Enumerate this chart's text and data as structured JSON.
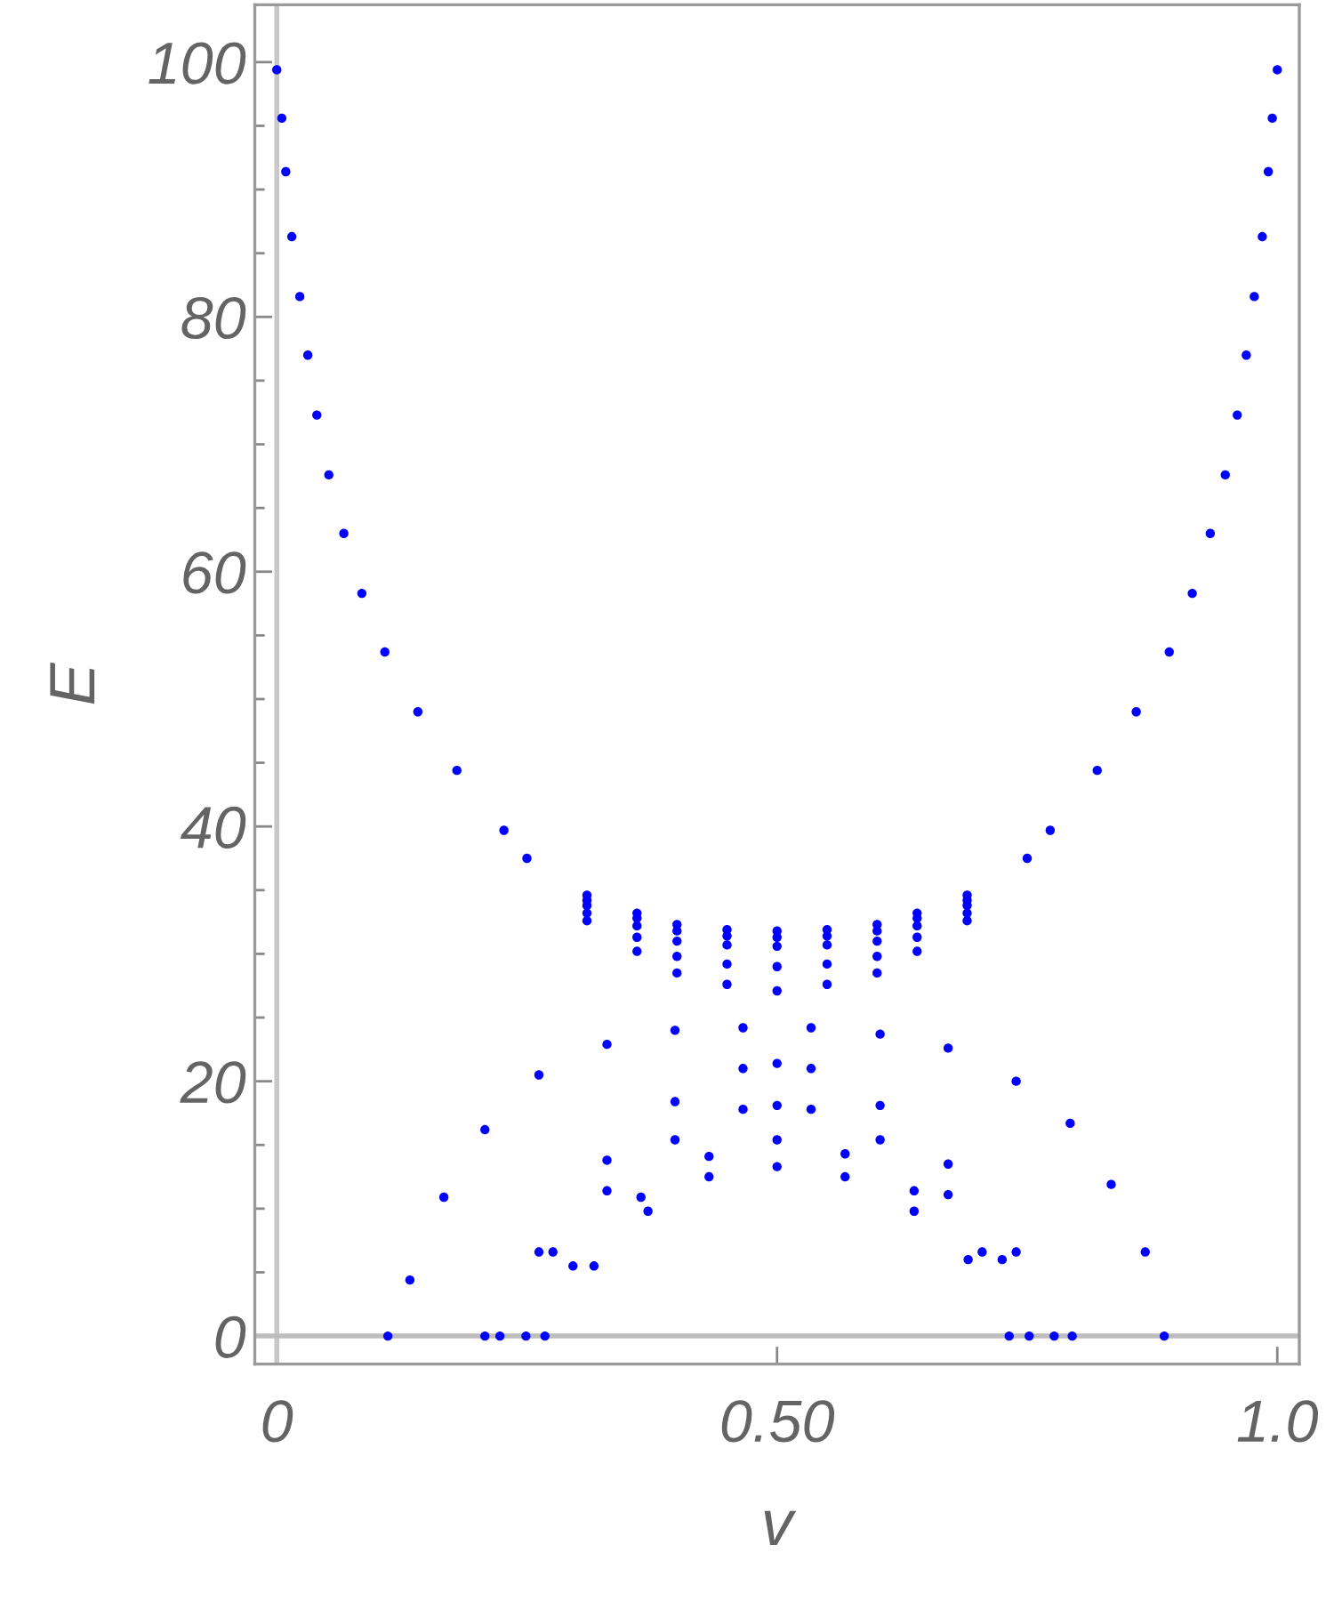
{
  "chart_data": {
    "type": "scatter",
    "xlabel": "v",
    "ylabel": "E",
    "xlim": [
      -0.022,
      1.022
    ],
    "ylim": [
      -2.2,
      104.5
    ],
    "xticks": [
      0,
      {
        "value": 0.5,
        "label": "0.50"
      },
      {
        "value": 1,
        "label": "1.0"
      }
    ],
    "yticks": [
      0,
      {
        "value": 5,
        "label": null
      },
      {
        "value": 10,
        "label": null
      },
      {
        "value": 15,
        "label": null
      },
      20,
      {
        "value": 25,
        "label": null
      },
      {
        "value": 30,
        "label": null
      },
      {
        "value": 35,
        "label": null
      },
      40,
      {
        "value": 45,
        "label": null
      },
      {
        "value": 50,
        "label": null
      },
      {
        "value": 55,
        "label": null
      },
      60,
      {
        "value": 65,
        "label": null
      },
      {
        "value": 70,
        "label": null
      },
      {
        "value": 75,
        "label": null
      },
      80,
      {
        "value": 85,
        "label": null
      },
      {
        "value": 90,
        "label": null
      },
      {
        "value": 95,
        "label": null
      },
      100
    ],
    "grid": false,
    "marker": "circle",
    "ref_lines": [
      {
        "axis": "x",
        "value": 0,
        "color": "#c8c8c8"
      },
      {
        "axis": "y",
        "value": 0,
        "color": "#bdbdbd"
      }
    ],
    "series": [
      {
        "color": "#0000ff",
        "x": [
          0,
          0.005,
          0.009,
          0.015,
          0.023,
          0.031,
          0.04,
          0.052,
          0.067,
          0.085,
          0.108,
          0.141,
          0.18,
          0.227,
          0.773,
          0.82,
          0.859,
          0.892,
          0.915,
          0.933,
          0.948,
          0.96,
          0.969,
          0.977,
          0.985,
          0.991,
          0.995,
          1
        ],
        "values": [
          99.4,
          95.6,
          91.4,
          86.3,
          81.6,
          77.0,
          72.3,
          67.6,
          63.0,
          58.3,
          53.7,
          49.0,
          44.4,
          39.7,
          39.7,
          44.4,
          49.0,
          53.7,
          58.3,
          63.0,
          67.6,
          72.3,
          77.0,
          81.6,
          86.3,
          91.4,
          95.6,
          99.4
        ]
      },
      {
        "color": "#0000ff",
        "x": [
          0.31,
          0.36,
          0.4,
          0.45,
          0.5,
          0.55,
          0.6,
          0.64,
          0.69
        ],
        "values": [
          34.6,
          33.2,
          32.3,
          31.9,
          31.8,
          31.9,
          32.3,
          33.2,
          34.6
        ]
      },
      {
        "color": "#0000ff",
        "x": [
          0.31,
          0.36,
          0.4,
          0.45,
          0.5,
          0.55,
          0.6,
          0.64,
          0.69
        ],
        "values": [
          34.2,
          32.8,
          31.8,
          31.4,
          31.3,
          31.4,
          31.8,
          32.8,
          34.2
        ]
      },
      {
        "color": "#0000ff",
        "x": [
          0.31,
          0.36,
          0.4,
          0.45,
          0.5,
          0.55,
          0.6,
          0.64,
          0.69
        ],
        "values": [
          33.8,
          32.2,
          31.0,
          30.7,
          30.6,
          30.7,
          31.0,
          32.2,
          33.8
        ]
      },
      {
        "color": "#0000ff",
        "x": [
          0.31,
          0.36,
          0.4,
          0.45,
          0.5,
          0.55,
          0.6,
          0.64,
          0.69
        ],
        "values": [
          33.2,
          31.3,
          29.8,
          29.2,
          29.0,
          29.2,
          29.8,
          31.3,
          33.2
        ]
      },
      {
        "color": "#0000ff",
        "x": [
          0.25,
          0.31,
          0.36,
          0.4,
          0.45,
          0.5,
          0.55,
          0.6,
          0.64,
          0.69,
          0.75
        ],
        "values": [
          37.5,
          32.6,
          30.2,
          28.5,
          27.6,
          27.1,
          27.6,
          28.5,
          30.2,
          32.6,
          37.5
        ]
      },
      {
        "color": "#0000ff",
        "x": [
          0.111,
          0.133,
          0.167,
          0.208,
          0.262,
          0.33,
          0.398,
          0.466,
          0.534,
          0.603,
          0.671,
          0.739,
          0.793,
          0.834,
          0.868,
          0.887
        ],
        "values": [
          0,
          4.4,
          10.9,
          16.2,
          20.5,
          22.9,
          24.0,
          24.2,
          24.2,
          23.7,
          22.6,
          20.0,
          16.7,
          11.9,
          6.6,
          0
        ]
      },
      {
        "color": "#0000ff",
        "x": [
          0.208,
          0.262,
          0.33,
          0.398,
          0.466,
          0.5,
          0.534,
          0.603,
          0.671,
          0.739,
          0.795
        ],
        "values": [
          0,
          6.6,
          13.8,
          18.4,
          21.0,
          21.4,
          21.0,
          18.1,
          13.5,
          6.6,
          0
        ]
      },
      {
        "color": "#0000ff",
        "x": [
          0.223,
          0.276,
          0.33,
          0.398,
          0.466,
          0.5,
          0.534,
          0.603,
          0.671,
          0.725,
          0.777
        ],
        "values": [
          0,
          6.6,
          11.4,
          15.4,
          17.8,
          18.1,
          17.8,
          15.4,
          11.1,
          6.0,
          0
        ]
      },
      {
        "color": "#0000ff",
        "x": [
          0.249,
          0.296,
          0.364,
          0.432,
          0.5,
          0.568,
          0.637,
          0.705,
          0.752
        ],
        "values": [
          0,
          5.5,
          10.9,
          14.1,
          15.4,
          14.3,
          11.4,
          6.6,
          0
        ]
      },
      {
        "color": "#0000ff",
        "x": [
          0.268,
          0.317,
          0.371,
          0.432,
          0.5,
          0.568,
          0.637,
          0.691,
          0.732
        ],
        "values": [
          0,
          5.5,
          9.8,
          12.5,
          13.3,
          12.5,
          9.8,
          6.0,
          0
        ]
      }
    ]
  }
}
